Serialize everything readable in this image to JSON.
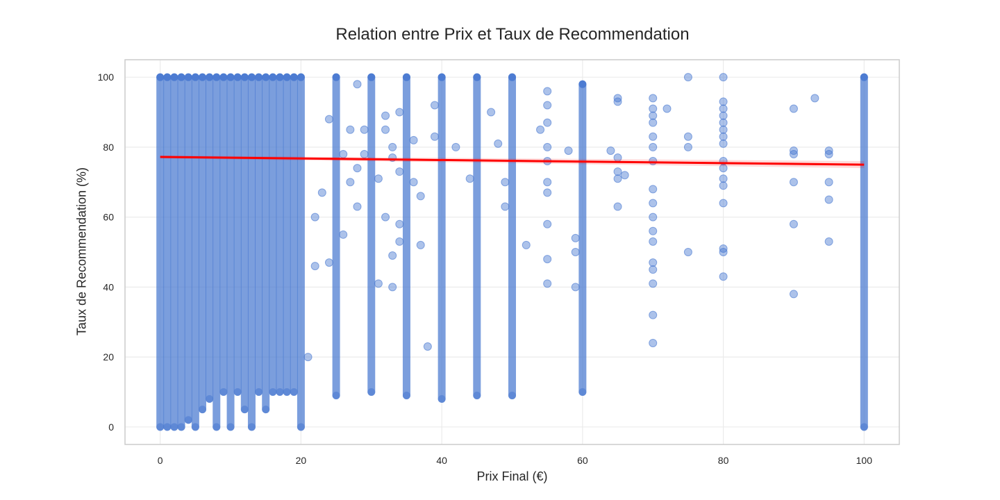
{
  "chart_data": {
    "type": "scatter",
    "title": "Relation entre Prix et Taux de Recommendation",
    "xlabel": "Prix Final (€)",
    "ylabel": "Taux de Recommendation (%)",
    "xlim": [
      -5,
      105
    ],
    "ylim": [
      -5,
      105
    ],
    "xticks": [
      0,
      20,
      40,
      60,
      80,
      100
    ],
    "yticks": [
      0,
      20,
      40,
      60,
      80,
      100
    ],
    "grid": true,
    "point_color": "#4878d0",
    "line_color": "#ff0000",
    "regression": {
      "x": [
        0,
        100
      ],
      "y": [
        77.2,
        75.0
      ]
    },
    "columns": [
      {
        "x": 0,
        "y_min": 0,
        "y_max": 100
      },
      {
        "x": 1,
        "y_min": 0,
        "y_max": 100
      },
      {
        "x": 2,
        "y_min": 0,
        "y_max": 100
      },
      {
        "x": 3,
        "y_min": 0,
        "y_max": 100
      },
      {
        "x": 4,
        "y_min": 2,
        "y_max": 100
      },
      {
        "x": 5,
        "y_min": 0,
        "y_max": 100
      },
      {
        "x": 6,
        "y_min": 5,
        "y_max": 100
      },
      {
        "x": 7,
        "y_min": 8,
        "y_max": 100
      },
      {
        "x": 8,
        "y_min": 0,
        "y_max": 100
      },
      {
        "x": 9,
        "y_min": 10,
        "y_max": 100
      },
      {
        "x": 10,
        "y_min": 0,
        "y_max": 100
      },
      {
        "x": 11,
        "y_min": 10,
        "y_max": 100
      },
      {
        "x": 12,
        "y_min": 5,
        "y_max": 100
      },
      {
        "x": 13,
        "y_min": 0,
        "y_max": 100
      },
      {
        "x": 14,
        "y_min": 10,
        "y_max": 100
      },
      {
        "x": 15,
        "y_min": 5,
        "y_max": 100
      },
      {
        "x": 16,
        "y_min": 10,
        "y_max": 100
      },
      {
        "x": 17,
        "y_min": 10,
        "y_max": 100
      },
      {
        "x": 18,
        "y_min": 10,
        "y_max": 100
      },
      {
        "x": 19,
        "y_min": 10,
        "y_max": 100
      },
      {
        "x": 20,
        "y_min": 0,
        "y_max": 100
      },
      {
        "x": 25,
        "y_min": 9,
        "y_max": 100
      },
      {
        "x": 30,
        "y_min": 10,
        "y_max": 100
      },
      {
        "x": 35,
        "y_min": 9,
        "y_max": 100
      },
      {
        "x": 40,
        "y_min": 8,
        "y_max": 100
      },
      {
        "x": 45,
        "y_min": 9,
        "y_max": 100
      },
      {
        "x": 50,
        "y_min": 9,
        "y_max": 100
      },
      {
        "x": 60,
        "y_min": 10,
        "y_max": 98
      },
      {
        "x": 100,
        "y_min": 0,
        "y_max": 100
      }
    ],
    "points": [
      [
        21,
        20
      ],
      [
        22,
        46
      ],
      [
        22,
        60
      ],
      [
        23,
        67
      ],
      [
        24,
        47
      ],
      [
        24,
        88
      ],
      [
        26,
        78
      ],
      [
        26,
        55
      ],
      [
        27,
        70
      ],
      [
        27,
        85
      ],
      [
        28,
        98
      ],
      [
        28,
        74
      ],
      [
        28,
        63
      ],
      [
        29,
        85
      ],
      [
        29,
        78
      ],
      [
        31,
        71
      ],
      [
        31,
        41
      ],
      [
        32,
        89
      ],
      [
        32,
        85
      ],
      [
        32,
        60
      ],
      [
        33,
        80
      ],
      [
        33,
        77
      ],
      [
        33,
        49
      ],
      [
        33,
        40
      ],
      [
        34,
        90
      ],
      [
        34,
        73
      ],
      [
        34,
        58
      ],
      [
        34,
        53
      ],
      [
        36,
        82
      ],
      [
        36,
        70
      ],
      [
        37,
        66
      ],
      [
        37,
        52
      ],
      [
        38,
        23
      ],
      [
        39,
        83
      ],
      [
        39,
        92
      ],
      [
        42,
        80
      ],
      [
        44,
        71
      ],
      [
        47,
        90
      ],
      [
        48,
        81
      ],
      [
        49,
        70
      ],
      [
        49,
        63
      ],
      [
        52,
        52
      ],
      [
        54,
        85
      ],
      [
        55,
        96
      ],
      [
        55,
        92
      ],
      [
        55,
        87
      ],
      [
        55,
        80
      ],
      [
        55,
        76
      ],
      [
        55,
        70
      ],
      [
        55,
        67
      ],
      [
        55,
        58
      ],
      [
        55,
        48
      ],
      [
        55,
        41
      ],
      [
        58,
        79
      ],
      [
        59,
        54
      ],
      [
        59,
        50
      ],
      [
        59,
        40
      ],
      [
        64,
        79
      ],
      [
        65,
        94
      ],
      [
        65,
        93
      ],
      [
        65,
        77
      ],
      [
        65,
        73
      ],
      [
        65,
        71
      ],
      [
        65,
        63
      ],
      [
        66,
        72
      ],
      [
        70,
        94
      ],
      [
        70,
        91
      ],
      [
        70,
        89
      ],
      [
        70,
        87
      ],
      [
        70,
        83
      ],
      [
        70,
        80
      ],
      [
        70,
        76
      ],
      [
        70,
        68
      ],
      [
        70,
        64
      ],
      [
        70,
        60
      ],
      [
        70,
        56
      ],
      [
        70,
        53
      ],
      [
        70,
        47
      ],
      [
        70,
        45
      ],
      [
        70,
        41
      ],
      [
        70,
        32
      ],
      [
        70,
        24
      ],
      [
        72,
        91
      ],
      [
        75,
        100
      ],
      [
        75,
        83
      ],
      [
        75,
        80
      ],
      [
        75,
        50
      ],
      [
        80,
        100
      ],
      [
        80,
        93
      ],
      [
        80,
        91
      ],
      [
        80,
        89
      ],
      [
        80,
        87
      ],
      [
        80,
        85
      ],
      [
        80,
        83
      ],
      [
        80,
        81
      ],
      [
        80,
        76
      ],
      [
        80,
        74
      ],
      [
        80,
        71
      ],
      [
        80,
        69
      ],
      [
        80,
        64
      ],
      [
        80,
        51
      ],
      [
        80,
        50
      ],
      [
        80,
        43
      ],
      [
        90,
        91
      ],
      [
        90,
        79
      ],
      [
        90,
        78
      ],
      [
        90,
        70
      ],
      [
        90,
        58
      ],
      [
        90,
        38
      ],
      [
        93,
        94
      ],
      [
        95,
        79
      ],
      [
        95,
        78
      ],
      [
        95,
        70
      ],
      [
        95,
        65
      ],
      [
        95,
        53
      ]
    ]
  }
}
